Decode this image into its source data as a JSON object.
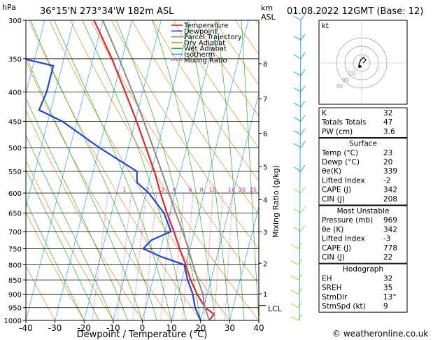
{
  "header": {
    "hpa_unit": "hPa",
    "location": "36°15'N 273°34'W 182m ASL",
    "km_unit": "km",
    "asl_unit": "ASL",
    "datetime": "01.08.2022 12GMT (Base: 12)"
  },
  "legend": [
    {
      "label": "Temperature",
      "color": "#e0262b"
    },
    {
      "label": "Dewpoint",
      "color": "#1f45d6"
    },
    {
      "label": "Parcel Trajectory",
      "color": "#8a8a8a"
    },
    {
      "label": "Dry Adiabat",
      "color": "#e08c1a"
    },
    {
      "label": "Wet Adiabat",
      "color": "#28b028"
    },
    {
      "label": "Isotherm",
      "color": "#2aa6d6"
    },
    {
      "label": "Mixing Ratio",
      "color": "#d62aa6"
    }
  ],
  "chart_data": {
    "type": "line",
    "subtype": "skew-T log-P diagram",
    "xlabel": "Dewpoint / Temperature (°C)",
    "ylabel": "hPa",
    "xlim": [
      -40,
      40
    ],
    "ylim": [
      1000,
      300
    ],
    "x_ticks": [
      -40,
      -30,
      -20,
      -10,
      0,
      10,
      20,
      30,
      40
    ],
    "pressure_levels": [
      300,
      350,
      400,
      450,
      500,
      550,
      600,
      650,
      700,
      750,
      800,
      850,
      900,
      950,
      1000
    ],
    "km_ticks": [
      {
        "km": "8",
        "p": 357
      },
      {
        "km": "7",
        "p": 411
      },
      {
        "km": "6",
        "p": 472
      },
      {
        "km": "5",
        "p": 540
      },
      {
        "km": "4",
        "p": 616
      },
      {
        "km": "3",
        "p": 701
      },
      {
        "km": "2",
        "p": 795
      },
      {
        "km": "1",
        "p": 899
      }
    ],
    "lcl": {
      "label": "LCL",
      "p": 942
    },
    "mixing_ratio_label": "Mixing Ratio (g/kg)",
    "mixing_ratio_values": [
      "1",
      "2",
      "3",
      "4",
      "6",
      "8",
      "10",
      "16",
      "20",
      "25"
    ],
    "series": [
      {
        "name": "Temperature",
        "color": "#e0262b",
        "points": [
          [
            1000,
            23
          ],
          [
            975,
            24
          ],
          [
            950,
            20.5
          ],
          [
            925,
            18.5
          ],
          [
            900,
            16.5
          ],
          [
            850,
            13
          ],
          [
            800,
            10
          ],
          [
            750,
            6.5
          ],
          [
            700,
            3
          ],
          [
            650,
            -1
          ],
          [
            600,
            -5
          ],
          [
            550,
            -9
          ],
          [
            500,
            -14
          ],
          [
            450,
            -19.5
          ],
          [
            400,
            -26
          ],
          [
            350,
            -33.5
          ],
          [
            300,
            -43
          ]
        ]
      },
      {
        "name": "Dewpoint",
        "color": "#1f45d6",
        "points": [
          [
            1000,
            20
          ],
          [
            950,
            17
          ],
          [
            900,
            15
          ],
          [
            850,
            12
          ],
          [
            800,
            9.5
          ],
          [
            775,
            1
          ],
          [
            750,
            -6
          ],
          [
            725,
            -4
          ],
          [
            700,
            2
          ],
          [
            650,
            -2
          ],
          [
            600,
            -9
          ],
          [
            575,
            -14
          ],
          [
            550,
            -15
          ],
          [
            500,
            -30
          ],
          [
            450,
            -45
          ],
          [
            430,
            -54
          ],
          [
            400,
            -53
          ],
          [
            360,
            -53
          ],
          [
            340,
            -75
          ],
          [
            300,
            -68
          ]
        ]
      },
      {
        "name": "Parcel Trajectory",
        "color": "#8a8a8a",
        "points": [
          [
            1000,
            23
          ],
          [
            942,
            20
          ],
          [
            900,
            18.5
          ],
          [
            850,
            15.5
          ],
          [
            800,
            12.5
          ],
          [
            750,
            9.5
          ],
          [
            700,
            6
          ],
          [
            650,
            2
          ],
          [
            600,
            -2
          ],
          [
            550,
            -6.5
          ],
          [
            500,
            -11.5
          ],
          [
            450,
            -17
          ],
          [
            400,
            -23.5
          ],
          [
            350,
            -31
          ],
          [
            300,
            -40
          ]
        ]
      }
    ]
  },
  "stats": {
    "rows": [
      {
        "label": "K",
        "value": "32"
      },
      {
        "label": "Totals Totals",
        "value": "47"
      },
      {
        "label": "PW (cm)",
        "value": "3.6"
      }
    ],
    "surface": {
      "title": "Surface",
      "rows": [
        {
          "label": "Temp (°C)",
          "value": "23"
        },
        {
          "label": "Dewp (°C)",
          "value": "20"
        },
        {
          "label": "θe(K)",
          "value": "339"
        },
        {
          "label": "Lifted Index",
          "value": "-2"
        },
        {
          "label": "CAPE (J)",
          "value": "342"
        },
        {
          "label": "CIN (J)",
          "value": "208"
        }
      ]
    },
    "most_unstable": {
      "title": "Most Unstable",
      "rows": [
        {
          "label": "Pressure (mb)",
          "value": "969"
        },
        {
          "label": "θe (K)",
          "value": "342"
        },
        {
          "label": "Lifted Index",
          "value": "-3"
        },
        {
          "label": "CAPE (J)",
          "value": "778"
        },
        {
          "label": "CIN (J)",
          "value": "22"
        }
      ]
    },
    "hodograph": {
      "title": "Hodograph",
      "rows": [
        {
          "label": "EH",
          "value": "32"
        },
        {
          "label": "SREH",
          "value": "35"
        },
        {
          "label": "StmDir",
          "value": "13°"
        },
        {
          "label": "StmSpd (kt)",
          "value": "9"
        }
      ]
    }
  },
  "hodo": {
    "unit": "kt",
    "rings": [
      "20",
      "30",
      "40"
    ]
  },
  "footer": {
    "copyright": "© weatheronline.co.uk"
  }
}
